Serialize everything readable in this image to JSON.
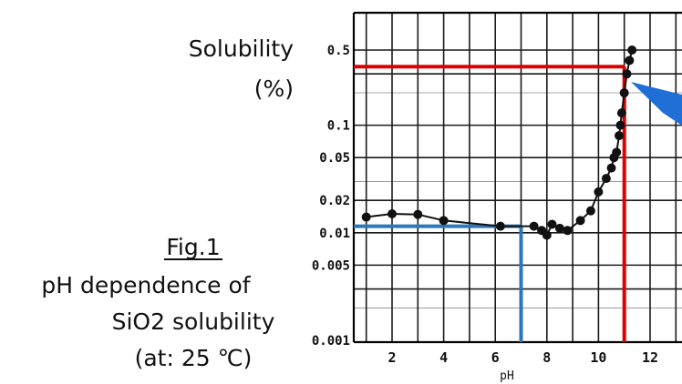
{
  "y_axis_title_lines": [
    "Solubility",
    "(%)"
  ],
  "caption": {
    "fig_label": "Fig.1",
    "lines": [
      "pH dependence of",
      "SiO2 solubility",
      "(at: 25 ℃)"
    ]
  },
  "colors": {
    "grid": "#1a1a1a",
    "curve": "#111111",
    "red_marker": "#e00000",
    "blue_marker": "#2a78b8",
    "callout": "#1f6fd6"
  },
  "chart_data": {
    "type": "scatter",
    "x_label": "pH",
    "y_label": "Solubility (%)",
    "y_scale": "log",
    "xlim": [
      1,
      13
    ],
    "ylim": [
      0.001,
      0.6
    ],
    "x_ticks": [
      2,
      4,
      6,
      8,
      10,
      12
    ],
    "y_ticks": [
      {
        "value": 0.5,
        "label": "0.5"
      },
      {
        "value": 0.1,
        "label": "0.1"
      },
      {
        "value": 0.05,
        "label": "0.05"
      },
      {
        "value": 0.02,
        "label": "0.02"
      },
      {
        "value": 0.01,
        "label": "0.01"
      },
      {
        "value": 0.005,
        "label": "0.005"
      },
      {
        "value": 0.001,
        "label": "0.001"
      }
    ],
    "grid": true,
    "series": [
      {
        "points": [
          {
            "x": 1.0,
            "y": 0.014
          },
          {
            "x": 2.0,
            "y": 0.015
          },
          {
            "x": 3.0,
            "y": 0.0148
          },
          {
            "x": 4.0,
            "y": 0.013
          },
          {
            "x": 6.2,
            "y": 0.0115
          },
          {
            "x": 7.5,
            "y": 0.0115
          },
          {
            "x": 7.8,
            "y": 0.0105
          },
          {
            "x": 8.0,
            "y": 0.0095
          },
          {
            "x": 8.2,
            "y": 0.012
          },
          {
            "x": 8.5,
            "y": 0.011
          },
          {
            "x": 8.8,
            "y": 0.0105
          },
          {
            "x": 9.3,
            "y": 0.013
          },
          {
            "x": 9.7,
            "y": 0.016
          },
          {
            "x": 10.0,
            "y": 0.024
          },
          {
            "x": 10.3,
            "y": 0.032
          },
          {
            "x": 10.5,
            "y": 0.04
          },
          {
            "x": 10.6,
            "y": 0.05
          },
          {
            "x": 10.7,
            "y": 0.056
          },
          {
            "x": 10.8,
            "y": 0.08
          },
          {
            "x": 10.85,
            "y": 0.1
          },
          {
            "x": 10.9,
            "y": 0.13
          },
          {
            "x": 11.0,
            "y": 0.2
          },
          {
            "x": 11.1,
            "y": 0.3
          },
          {
            "x": 11.2,
            "y": 0.4
          },
          {
            "x": 11.3,
            "y": 0.5
          }
        ]
      }
    ],
    "reference_lines": [
      {
        "color": "red",
        "x": 11.0,
        "y": 0.35
      },
      {
        "color": "blue",
        "x": 7.0,
        "y": 0.0115
      }
    ]
  }
}
